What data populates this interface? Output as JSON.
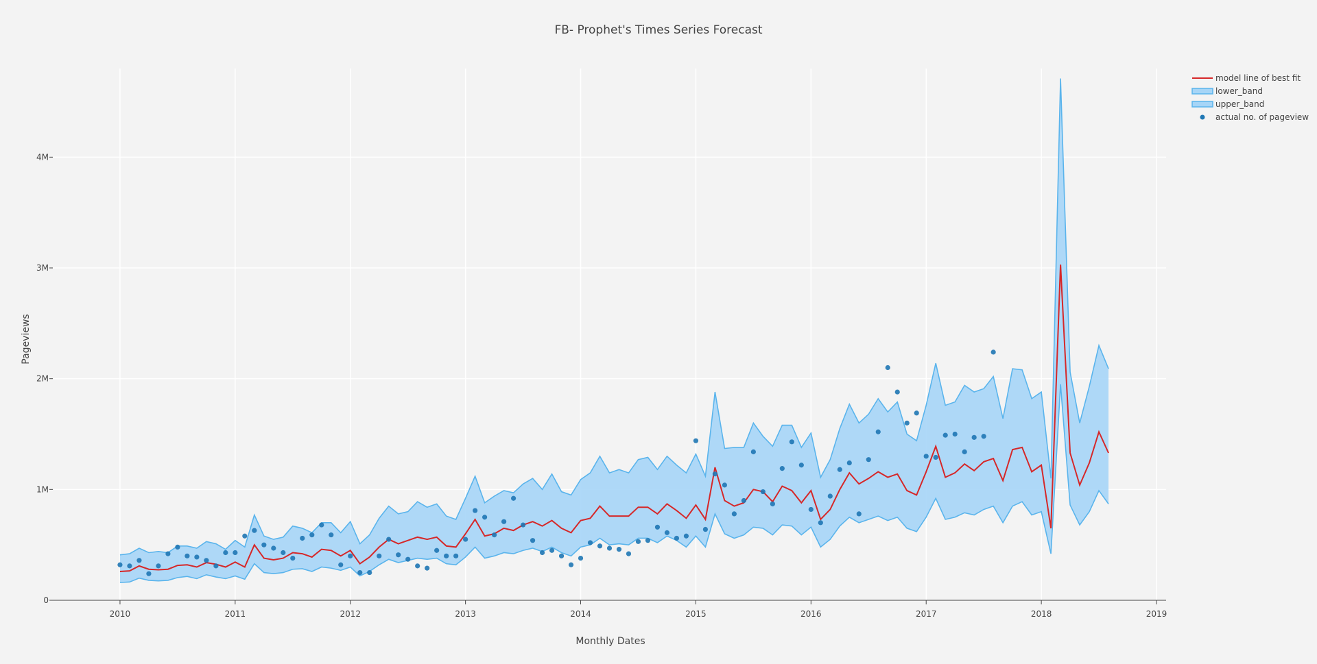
{
  "chart_data": {
    "type": "line",
    "title": "FB- Prophet's Times Series Forecast",
    "xlabel": "Monthly Dates",
    "ylabel": "Pageviews",
    "x_ticks": [
      "2010",
      "2011",
      "2012",
      "2013",
      "2014",
      "2015",
      "2016",
      "2017",
      "2018",
      "2019"
    ],
    "y_ticks": [
      {
        "value": 0,
        "label": "0"
      },
      {
        "value": 1000000,
        "label": "1M"
      },
      {
        "value": 2000000,
        "label": "2M"
      },
      {
        "value": 3000000,
        "label": "3M"
      },
      {
        "value": 4000000,
        "label": "4M"
      }
    ],
    "xlim": [
      "2009-06",
      "2019-02"
    ],
    "ylim": [
      0,
      4800000
    ],
    "grid": true,
    "legend_position": "top-right",
    "colors": {
      "model": "#d62728",
      "band_line": "#5ab4ec",
      "band_fill": "#a6d5f7",
      "actual": "#1f77b4",
      "grid": "#ffffff",
      "background": "#f3f3f3"
    },
    "legend": [
      "model line of best fit",
      "lower_band",
      "upper_band",
      "actual no. of pageview"
    ],
    "x": [
      "2010-01",
      "2010-02",
      "2010-03",
      "2010-04",
      "2010-05",
      "2010-06",
      "2010-07",
      "2010-08",
      "2010-09",
      "2010-10",
      "2010-11",
      "2010-12",
      "2011-01",
      "2011-02",
      "2011-03",
      "2011-04",
      "2011-05",
      "2011-06",
      "2011-07",
      "2011-08",
      "2011-09",
      "2011-10",
      "2011-11",
      "2011-12",
      "2012-01",
      "2012-02",
      "2012-03",
      "2012-04",
      "2012-05",
      "2012-06",
      "2012-07",
      "2012-08",
      "2012-09",
      "2012-10",
      "2012-11",
      "2012-12",
      "2013-01",
      "2013-02",
      "2013-03",
      "2013-04",
      "2013-05",
      "2013-06",
      "2013-07",
      "2013-08",
      "2013-09",
      "2013-10",
      "2013-11",
      "2013-12",
      "2014-01",
      "2014-02",
      "2014-03",
      "2014-04",
      "2014-05",
      "2014-06",
      "2014-07",
      "2014-08",
      "2014-09",
      "2014-10",
      "2014-11",
      "2014-12",
      "2015-01",
      "2015-02",
      "2015-03",
      "2015-04",
      "2015-05",
      "2015-06",
      "2015-07",
      "2015-08",
      "2015-09",
      "2015-10",
      "2015-11",
      "2015-12",
      "2016-01",
      "2016-02",
      "2016-03",
      "2016-04",
      "2016-05",
      "2016-06",
      "2016-07",
      "2016-08",
      "2016-09",
      "2016-10",
      "2016-11",
      "2016-12",
      "2017-01",
      "2017-02",
      "2017-03",
      "2017-04",
      "2017-05",
      "2017-06",
      "2017-07",
      "2017-08",
      "2017-09",
      "2017-10",
      "2017-11",
      "2017-12",
      "2018-01",
      "2018-02",
      "2018-03",
      "2018-04",
      "2018-05",
      "2018-06",
      "2018-07",
      "2018-08"
    ],
    "series": [
      {
        "name": "model line of best fit",
        "values": [
          260000,
          265000,
          310000,
          280000,
          275000,
          280000,
          315000,
          320000,
          300000,
          340000,
          325000,
          300000,
          345000,
          300000,
          500000,
          380000,
          365000,
          380000,
          430000,
          420000,
          390000,
          460000,
          450000,
          400000,
          450000,
          330000,
          390000,
          480000,
          550000,
          510000,
          540000,
          570000,
          550000,
          570000,
          490000,
          480000,
          600000,
          730000,
          580000,
          600000,
          650000,
          630000,
          680000,
          710000,
          670000,
          720000,
          650000,
          610000,
          720000,
          740000,
          850000,
          760000,
          760000,
          760000,
          840000,
          840000,
          780000,
          870000,
          810000,
          740000,
          860000,
          730000,
          1200000,
          900000,
          850000,
          880000,
          1000000,
          980000,
          890000,
          1030000,
          990000,
          880000,
          990000,
          730000,
          820000,
          1000000,
          1150000,
          1050000,
          1100000,
          1160000,
          1110000,
          1140000,
          990000,
          950000,
          1160000,
          1390000,
          1110000,
          1150000,
          1230000,
          1170000,
          1250000,
          1280000,
          1080000,
          1360000,
          1380000,
          1160000,
          1220000,
          650000,
          3030000,
          1330000,
          1040000,
          1240000,
          1520000,
          1330000
        ]
      },
      {
        "name": "lower_band",
        "values": [
          160000,
          165000,
          200000,
          180000,
          175000,
          180000,
          205000,
          215000,
          195000,
          230000,
          210000,
          195000,
          220000,
          190000,
          330000,
          250000,
          240000,
          250000,
          280000,
          285000,
          260000,
          300000,
          290000,
          270000,
          300000,
          220000,
          260000,
          320000,
          370000,
          340000,
          360000,
          380000,
          370000,
          380000,
          330000,
          320000,
          390000,
          480000,
          380000,
          400000,
          430000,
          420000,
          450000,
          470000,
          440000,
          480000,
          430000,
          400000,
          480000,
          500000,
          560000,
          500000,
          510000,
          500000,
          560000,
          560000,
          520000,
          580000,
          540000,
          480000,
          580000,
          480000,
          780000,
          600000,
          560000,
          590000,
          660000,
          650000,
          590000,
          680000,
          670000,
          590000,
          660000,
          480000,
          550000,
          670000,
          750000,
          700000,
          730000,
          760000,
          720000,
          750000,
          650000,
          620000,
          750000,
          920000,
          730000,
          750000,
          790000,
          770000,
          820000,
          850000,
          700000,
          850000,
          890000,
          770000,
          800000,
          420000,
          1950000,
          860000,
          680000,
          800000,
          990000,
          870000
        ]
      },
      {
        "name": "upper_band",
        "values": [
          410000,
          420000,
          470000,
          430000,
          440000,
          430000,
          490000,
          490000,
          470000,
          530000,
          510000,
          460000,
          540000,
          480000,
          770000,
          580000,
          550000,
          570000,
          670000,
          650000,
          610000,
          700000,
          700000,
          610000,
          710000,
          510000,
          590000,
          740000,
          850000,
          780000,
          800000,
          890000,
          840000,
          870000,
          760000,
          730000,
          920000,
          1120000,
          880000,
          940000,
          990000,
          970000,
          1050000,
          1100000,
          1000000,
          1140000,
          980000,
          950000,
          1090000,
          1150000,
          1300000,
          1150000,
          1180000,
          1150000,
          1270000,
          1290000,
          1180000,
          1300000,
          1220000,
          1150000,
          1320000,
          1120000,
          1880000,
          1370000,
          1380000,
          1380000,
          1600000,
          1480000,
          1390000,
          1580000,
          1580000,
          1380000,
          1510000,
          1110000,
          1270000,
          1550000,
          1770000,
          1600000,
          1680000,
          1820000,
          1700000,
          1790000,
          1500000,
          1440000,
          1760000,
          2140000,
          1760000,
          1790000,
          1940000,
          1880000,
          1910000,
          2020000,
          1640000,
          2090000,
          2080000,
          1820000,
          1880000,
          1100000,
          4710000,
          2060000,
          1600000,
          1930000,
          2300000,
          2090000
        ]
      },
      {
        "name": "actual no. of pageview",
        "x": [
          "2010-01",
          "2010-02",
          "2010-03",
          "2010-04",
          "2010-05",
          "2010-06",
          "2010-07",
          "2010-08",
          "2010-09",
          "2010-10",
          "2010-11",
          "2010-12",
          "2011-01",
          "2011-02",
          "2011-03",
          "2011-04",
          "2011-05",
          "2011-06",
          "2011-07",
          "2011-08",
          "2011-09",
          "2011-10",
          "2011-11",
          "2011-12",
          "2012-01",
          "2012-02",
          "2012-03",
          "2012-04",
          "2012-05",
          "2012-06",
          "2012-07",
          "2012-08",
          "2012-09",
          "2012-10",
          "2012-11",
          "2012-12",
          "2013-01",
          "2013-02",
          "2013-03",
          "2013-04",
          "2013-05",
          "2013-06",
          "2013-07",
          "2013-08",
          "2013-09",
          "2013-10",
          "2013-11",
          "2013-12",
          "2014-01",
          "2014-02",
          "2014-03",
          "2014-04",
          "2014-05",
          "2014-06",
          "2014-07",
          "2014-08",
          "2014-09",
          "2014-10",
          "2014-11",
          "2014-12",
          "2015-01",
          "2015-02",
          "2015-03",
          "2015-04",
          "2015-05",
          "2015-06",
          "2015-07",
          "2015-08",
          "2015-09",
          "2015-10",
          "2015-11",
          "2015-12",
          "2016-01",
          "2016-02",
          "2016-03",
          "2016-04",
          "2016-05",
          "2016-06",
          "2016-07",
          "2016-08",
          "2016-09",
          "2016-10",
          "2016-11",
          "2016-12",
          "2017-01",
          "2017-02",
          "2017-03",
          "2017-04",
          "2017-05",
          "2017-06",
          "2017-07",
          "2017-08"
        ],
        "values": [
          320000,
          310000,
          360000,
          240000,
          310000,
          420000,
          480000,
          400000,
          390000,
          360000,
          310000,
          430000,
          430000,
          580000,
          630000,
          500000,
          470000,
          430000,
          380000,
          560000,
          590000,
          680000,
          590000,
          320000,
          400000,
          250000,
          250000,
          400000,
          550000,
          410000,
          370000,
          310000,
          290000,
          450000,
          400000,
          400000,
          550000,
          810000,
          750000,
          590000,
          710000,
          920000,
          680000,
          540000,
          430000,
          450000,
          400000,
          320000,
          380000,
          520000,
          490000,
          470000,
          460000,
          420000,
          530000,
          540000,
          660000,
          610000,
          560000,
          580000,
          1440000,
          640000,
          1140000,
          1040000,
          780000,
          900000,
          1340000,
          980000,
          870000,
          1190000,
          1430000,
          1220000,
          820000,
          700000,
          940000,
          1180000,
          1240000,
          780000,
          1270000,
          1520000,
          2100000,
          1880000,
          1600000,
          1690000,
          1300000,
          1290000,
          1490000,
          1500000,
          1340000,
          1470000,
          1480000,
          2240000
        ]
      }
    ]
  }
}
